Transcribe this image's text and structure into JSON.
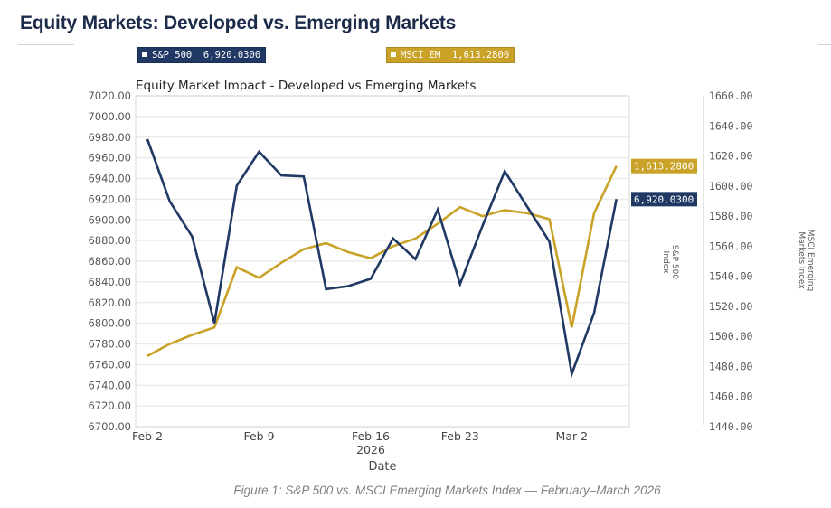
{
  "page": {
    "title": "Equity Markets: Developed vs. Emerging Markets",
    "caption": "Figure 1: S&P 500 vs. MSCI Emerging Markets Index — February–March 2026"
  },
  "legend": {
    "sp": {
      "name": "S&P 500",
      "value": "6,920.0300"
    },
    "em": {
      "name": "MSCI EM",
      "value": "1,613.2800"
    }
  },
  "colors": {
    "sp": "#1f3864",
    "em": "#c9a227",
    "grid": "#ebebeb"
  },
  "chart_data": {
    "type": "line",
    "title": "Equity Market Impact - Developed vs Emerging Markets",
    "xlabel": "Date",
    "x_year_label": "2026",
    "x_ticks": [
      {
        "index": 0,
        "label": "Feb 2"
      },
      {
        "index": 5,
        "label": "Feb 9"
      },
      {
        "index": 10,
        "label": "Feb 16"
      },
      {
        "index": 14,
        "label": "Feb 23"
      },
      {
        "index": 19,
        "label": "Mar 2"
      }
    ],
    "grid": true,
    "y_left": {
      "label_lines": [
        "S&P 500",
        "Index"
      ],
      "range": [
        6700,
        7020
      ],
      "ticks": [
        "7020.00",
        "7000.00",
        "6980.00",
        "6960.00",
        "6940.00",
        "6920.00",
        "6900.00",
        "6880.00",
        "6860.00",
        "6840.00",
        "6820.00",
        "6800.00",
        "6780.00",
        "6760.00",
        "6740.00",
        "6720.00",
        "6700.00"
      ]
    },
    "y_right": {
      "label_lines": [
        "MSCI Emerging",
        "Markets Index"
      ],
      "range": [
        1440,
        1660
      ],
      "ticks": [
        "1660.00",
        "1640.00",
        "1620.00",
        "1600.00",
        "1580.00",
        "1560.00",
        "1540.00",
        "1520.00",
        "1500.00",
        "1480.00",
        "1460.00",
        "1440.00"
      ]
    },
    "series": [
      {
        "name": "S&P 500",
        "axis": "left",
        "color": "#1f3864",
        "end_label": "6,920.0300",
        "values": [
          6978,
          6918,
          6884,
          6800,
          6933,
          6966,
          6943,
          6942,
          6833,
          6836,
          6843,
          6882,
          6862,
          6910,
          6838,
          6894,
          6947,
          6913,
          6879,
          6751,
          6810,
          6920.03
        ]
      },
      {
        "name": "MSCI EM",
        "axis": "right",
        "color": "#c9a227",
        "end_label": "1,613.2800",
        "values": [
          1487,
          1495,
          1501,
          1506,
          1546,
          1539,
          1549,
          1558,
          1562,
          1556,
          1552,
          1560,
          1565,
          1575,
          1586,
          1580,
          1584,
          1582,
          1578,
          1506,
          1582,
          1613.28
        ]
      }
    ]
  }
}
